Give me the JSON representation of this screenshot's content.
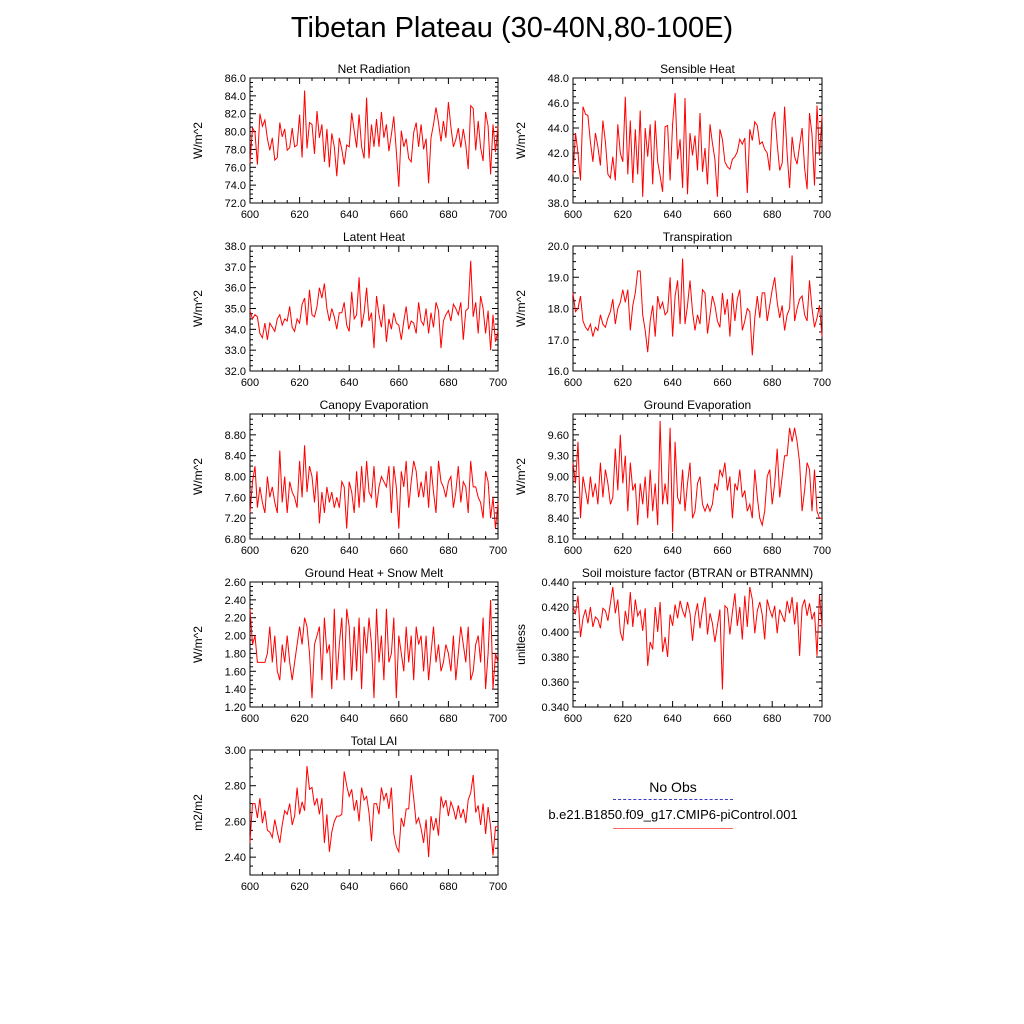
{
  "figure_title": "Tibetan Plateau (30-40N,80-100E)",
  "legend": {
    "obs_label": "No Obs",
    "run_label": "b.e21.B1850.f09_g17.CMIP6-piControl.001",
    "obs_color": "#3b3bc4",
    "run_color": "#ff6666"
  },
  "line_color": "#ff0000",
  "chart_data": [
    {
      "type": "line",
      "title": "Net Radiation",
      "ylabel": "W/m^2",
      "xlabel": "",
      "xlim": [
        600,
        700
      ],
      "xticks": [
        "600",
        "620",
        "640",
        "660",
        "680",
        "700"
      ],
      "ylim": [
        72,
        86
      ],
      "yticks": [
        "72.0",
        "74.0",
        "76.0",
        "78.0",
        "80.0",
        "82.0",
        "84.0",
        "86.0"
      ],
      "x_start": 600,
      "values": [
        76.5,
        80.4,
        79.9,
        76.3,
        82.0,
        80.6,
        81.3,
        79.2,
        77.9,
        79.3,
        76.8,
        77.1,
        81.0,
        79.4,
        80.3,
        77.9,
        78.2,
        80.4,
        78.3,
        78.5,
        81.9,
        77.1,
        84.6,
        78.1,
        81.0,
        80.8,
        77.5,
        82.3,
        79.3,
        80.8,
        76.6,
        80.3,
        76.0,
        79.8,
        78.3,
        75.0,
        79.3,
        78.0,
        76.3,
        78.5,
        78.3,
        82.1,
        80.1,
        78.2,
        81.9,
        78.3,
        77.0,
        83.8,
        77.0,
        80.8,
        78.3,
        81.4,
        78.3,
        82.2,
        79.3,
        80.8,
        77.8,
        79.7,
        81.7,
        77.8,
        73.8,
        80.1,
        78.3,
        79.2,
        77.0,
        76.6,
        79.9,
        81.0,
        78.3,
        80.8,
        78.0,
        79.2,
        74.2,
        79.3,
        80.8,
        82.7,
        81.0,
        78.9,
        81.2,
        79.3,
        83.3,
        80.5,
        78.3,
        79.1,
        80.4,
        78.2,
        80.3,
        78.5,
        75.8,
        82.9,
        82.6,
        77.9,
        81.2,
        78.2,
        76.7,
        82.2,
        80.6,
        75.2,
        80.8,
        77.7,
        80.6
      ]
    },
    {
      "type": "line",
      "title": "Sensible Heat",
      "ylabel": "W/m^2",
      "xlabel": "",
      "xlim": [
        600,
        700
      ],
      "xticks": [
        "600",
        "620",
        "640",
        "660",
        "680",
        "700"
      ],
      "ylim": [
        38,
        48
      ],
      "yticks": [
        "38.0",
        "40.0",
        "42.0",
        "44.0",
        "46.0",
        "48.0"
      ],
      "x_start": 600,
      "values": [
        40.3,
        43.6,
        42.0,
        39.8,
        45.7,
        45.1,
        45.0,
        42.9,
        41.3,
        43.6,
        42.5,
        41.0,
        44.6,
        42.9,
        40.3,
        40.0,
        41.7,
        39.8,
        44.3,
        42.0,
        41.3,
        46.5,
        40.3,
        44.6,
        39.6,
        43.9,
        40.3,
        45.4,
        38.5,
        44.0,
        41.7,
        44.3,
        39.5,
        44.6,
        41.3,
        40.2,
        38.9,
        44.1,
        44.2,
        39.8,
        44.3,
        46.8,
        41.5,
        43.1,
        39.2,
        46.4,
        38.7,
        43.6,
        41.8,
        43.4,
        40.6,
        45.2,
        40.5,
        42.4,
        39.5,
        44.3,
        42.8,
        41.5,
        38.5,
        43.9,
        43.1,
        41.3,
        40.9,
        40.7,
        41.5,
        41.7,
        42.1,
        43.1,
        42.7,
        43.2,
        38.8,
        43.9,
        43.0,
        44.5,
        44.2,
        42.7,
        42.9,
        42.3,
        42.0,
        40.6,
        44.6,
        45.3,
        42.7,
        40.6,
        41.2,
        45.7,
        42.0,
        39.2,
        43.3,
        41.7,
        41.1,
        42.6,
        44.0,
        40.8,
        39.1,
        45.2,
        43.5,
        39.4,
        45.8,
        41.8,
        45.0
      ]
    },
    {
      "type": "line",
      "title": "Latent Heat",
      "ylabel": "W/m^2",
      "xlabel": "",
      "xlim": [
        600,
        700
      ],
      "xticks": [
        "600",
        "620",
        "640",
        "660",
        "680",
        "700"
      ],
      "ylim": [
        32,
        38
      ],
      "yticks": [
        "32.0",
        "33.0",
        "34.0",
        "35.0",
        "36.0",
        "37.0",
        "38.0"
      ],
      "x_start": 600,
      "values": [
        34.9,
        34.5,
        34.7,
        34.6,
        33.8,
        33.6,
        34.3,
        33.5,
        34.3,
        34.1,
        33.9,
        34.5,
        34.7,
        34.2,
        34.5,
        34.4,
        35.1,
        34.1,
        33.9,
        34.5,
        34.3,
        35.2,
        35.5,
        34.2,
        35.9,
        34.7,
        34.6,
        35.1,
        36.0,
        35.5,
        36.2,
        35.0,
        34.4,
        35.0,
        34.6,
        34.0,
        34.8,
        34.8,
        35.3,
        34.2,
        33.9,
        35.8,
        34.5,
        34.7,
        36.5,
        34.1,
        34.8,
        36.0,
        34.4,
        34.8,
        33.1,
        35.6,
        34.7,
        34.1,
        35.2,
        33.4,
        34.5,
        34.0,
        34.8,
        34.3,
        34.2,
        33.5,
        34.4,
        35.1,
        34.0,
        34.4,
        34.3,
        33.8,
        35.3,
        34.4,
        34.2,
        35.0,
        33.8,
        34.8,
        34.1,
        35.3,
        34.9,
        33.1,
        34.4,
        34.7,
        34.9,
        34.4,
        35.2,
        35.0,
        34.7,
        35.3,
        33.5,
        34.9,
        35.0,
        37.3,
        34.6,
        35.3,
        33.8,
        35.6,
        35.0,
        33.8,
        34.9,
        33.0,
        34.7,
        33.4,
        33.9
      ]
    },
    {
      "type": "line",
      "title": "Transpiration",
      "ylabel": "W/m^2",
      "xlabel": "",
      "xlim": [
        600,
        700
      ],
      "xticks": [
        "600",
        "620",
        "640",
        "660",
        "680",
        "700"
      ],
      "ylim": [
        16,
        20
      ],
      "yticks": [
        "16.0",
        "17.0",
        "18.0",
        "19.0",
        "20.0"
      ],
      "x_start": 600,
      "values": [
        18.5,
        17.9,
        18.0,
        18.4,
        17.6,
        17.4,
        17.3,
        17.5,
        17.1,
        17.4,
        17.3,
        17.8,
        17.5,
        17.4,
        17.7,
        17.9,
        18.3,
        17.5,
        18.0,
        18.2,
        18.6,
        18.2,
        18.6,
        17.3,
        18.1,
        18.5,
        19.2,
        19.2,
        17.8,
        17.3,
        16.6,
        17.6,
        18.1,
        17.1,
        18.4,
        18.0,
        18.2,
        17.8,
        17.9,
        19.0,
        17.1,
        18.4,
        18.9,
        17.5,
        19.6,
        17.5,
        18.1,
        18.9,
        17.9,
        17.3,
        17.8,
        17.5,
        18.6,
        18.5,
        17.2,
        17.8,
        18.4,
        18.1,
        17.6,
        17.4,
        18.5,
        17.8,
        18.3,
        17.1,
        18.5,
        17.6,
        18.3,
        18.6,
        17.3,
        17.6,
        18.0,
        17.9,
        16.5,
        17.7,
        18.4,
        17.7,
        18.5,
        18.5,
        17.6,
        18.1,
        18.6,
        19.0,
        18.2,
        17.7,
        18.1,
        17.3,
        17.8,
        18.0,
        19.7,
        17.6,
        18.0,
        18.3,
        18.4,
        17.8,
        17.6,
        18.9,
        18.0,
        17.4,
        17.7,
        18.1,
        17.1
      ]
    },
    {
      "type": "line",
      "title": "Canopy Evaporation",
      "ylabel": "W/m^2",
      "xlabel": "",
      "xlim": [
        600,
        700
      ],
      "xticks": [
        "600",
        "620",
        "640",
        "660",
        "680",
        "700"
      ],
      "ylim": [
        6.8,
        9.2
      ],
      "yticks": [
        "6.80",
        "7.20",
        "7.60",
        "8.00",
        "8.40",
        "8.80"
      ],
      "x_start": 600,
      "values": [
        7.3,
        7.9,
        8.2,
        7.4,
        7.8,
        7.5,
        7.3,
        8.0,
        7.6,
        7.8,
        7.5,
        7.3,
        8.5,
        7.5,
        8.0,
        7.3,
        7.9,
        7.7,
        7.6,
        7.4,
        8.3,
        7.6,
        8.6,
        7.7,
        8.2,
        8.0,
        7.5,
        8.1,
        7.1,
        7.7,
        7.3,
        7.8,
        7.5,
        7.7,
        7.4,
        7.6,
        7.4,
        7.9,
        7.8,
        7.0,
        7.9,
        7.7,
        7.3,
        8.1,
        7.4,
        8.2,
        7.5,
        8.3,
        7.7,
        7.6,
        8.2,
        7.4,
        7.8,
        8.0,
        7.9,
        7.8,
        8.2,
        7.3,
        8.2,
        7.8,
        7.0,
        8.1,
        7.8,
        8.3,
        7.4,
        7.9,
        8.3,
        8.1,
        7.6,
        7.9,
        7.6,
        8.1,
        7.4,
        8.2,
        7.7,
        7.3,
        8.3,
        7.9,
        7.8,
        7.6,
        7.9,
        8.0,
        7.4,
        7.7,
        8.2,
        7.5,
        7.9,
        7.8,
        7.3,
        8.3,
        7.8,
        7.8,
        7.6,
        7.5,
        7.2,
        8.1,
        7.9,
        7.2,
        7.6,
        7.0,
        7.5
      ]
    },
    {
      "type": "line",
      "title": "Ground Evaporation",
      "ylabel": "W/m^2",
      "xlabel": "",
      "xlim": [
        600,
        700
      ],
      "xticks": [
        "600",
        "620",
        "640",
        "660",
        "680",
        "700"
      ],
      "ylim": [
        8.1,
        9.9
      ],
      "yticks": [
        "8.10",
        "8.40",
        "8.70",
        "9.00",
        "9.30",
        "9.60"
      ],
      "x_start": 600,
      "values": [
        9.2,
        8.9,
        9.5,
        8.4,
        9.0,
        8.8,
        8.6,
        9.0,
        8.7,
        8.9,
        8.6,
        9.2,
        8.7,
        9.1,
        8.9,
        8.6,
        8.7,
        9.4,
        8.8,
        9.6,
        8.9,
        9.3,
        8.5,
        9.2,
        8.8,
        8.9,
        8.3,
        8.9,
        8.6,
        9.0,
        8.4,
        9.1,
        8.5,
        8.9,
        8.3,
        9.8,
        8.6,
        8.9,
        8.6,
        9.7,
        8.2,
        9.5,
        8.7,
        8.6,
        9.1,
        8.5,
        8.9,
        9.2,
        8.4,
        8.5,
        8.9,
        9.0,
        8.6,
        8.5,
        8.6,
        8.5,
        8.6,
        8.9,
        8.8,
        9.1,
        9.0,
        9.2,
        8.8,
        9.0,
        8.4,
        8.9,
        8.8,
        9.1,
        8.7,
        8.8,
        8.5,
        8.6,
        8.4,
        9.1,
        8.7,
        8.4,
        8.3,
        8.5,
        9.0,
        9.1,
        8.6,
        8.9,
        9.4,
        8.7,
        9.0,
        9.3,
        9.3,
        9.7,
        9.5,
        9.7,
        9.5,
        9.2,
        8.5,
        8.8,
        9.2,
        9.1,
        8.5,
        9.1,
        8.5,
        8.4,
        8.4
      ]
    },
    {
      "type": "line",
      "title": "Ground Heat + Snow Melt",
      "ylabel": "W/m^2",
      "xlabel": "",
      "xlim": [
        600,
        700
      ],
      "xticks": [
        "600",
        "620",
        "640",
        "660",
        "680",
        "700"
      ],
      "ylim": [
        1.2,
        2.6
      ],
      "yticks": [
        "1.20",
        "1.40",
        "1.60",
        "1.80",
        "2.00",
        "2.20",
        "2.40",
        "2.60"
      ],
      "x_start": 600,
      "values": [
        2.3,
        1.9,
        2.0,
        1.7,
        1.7,
        1.7,
        1.7,
        1.8,
        2.1,
        1.7,
        2.0,
        1.6,
        1.5,
        1.9,
        1.7,
        2.0,
        1.7,
        1.5,
        1.7,
        1.9,
        2.1,
        1.9,
        2.2,
        2.1,
        1.8,
        1.3,
        1.9,
        2.0,
        2.1,
        1.5,
        2.2,
        1.8,
        1.9,
        1.4,
        2.3,
        1.5,
        1.9,
        2.2,
        1.5,
        2.3,
        2.1,
        1.5,
        2.1,
        1.6,
        2.2,
        1.4,
        2.1,
        1.8,
        2.2,
        1.9,
        1.3,
        2.3,
        1.7,
        2.0,
        1.5,
        2.3,
        1.7,
        1.8,
        2.2,
        1.3,
        2.0,
        1.8,
        1.6,
        2.1,
        1.7,
        2.0,
        1.5,
        2.1,
        1.9,
        2.0,
        1.6,
        2.0,
        1.5,
        1.8,
        2.1,
        1.7,
        1.9,
        1.6,
        1.7,
        1.9,
        1.8,
        1.6,
        2.0,
        1.5,
        1.8,
        2.1,
        1.9,
        1.7,
        2.1,
        1.5,
        1.6,
        1.9,
        2.0,
        1.7,
        2.2,
        1.4,
        1.8,
        2.4,
        1.4,
        1.8,
        1.7
      ]
    },
    {
      "type": "line",
      "title": "Soil moisture factor (BTRAN or BTRANMN)",
      "ylabel": "unitless",
      "xlabel": "",
      "xlim": [
        600,
        700
      ],
      "xticks": [
        "600",
        "620",
        "640",
        "660",
        "680",
        "700"
      ],
      "ylim": [
        0.34,
        0.44
      ],
      "yticks": [
        "0.340",
        "0.360",
        "0.380",
        "0.400",
        "0.420",
        "0.440"
      ],
      "x_start": 600,
      "values": [
        0.42,
        0.415,
        0.429,
        0.396,
        0.411,
        0.418,
        0.407,
        0.42,
        0.404,
        0.412,
        0.41,
        0.403,
        0.419,
        0.417,
        0.409,
        0.423,
        0.436,
        0.415,
        0.426,
        0.4,
        0.393,
        0.417,
        0.406,
        0.432,
        0.404,
        0.426,
        0.413,
        0.417,
        0.401,
        0.419,
        0.373,
        0.392,
        0.386,
        0.42,
        0.4,
        0.424,
        0.384,
        0.396,
        0.38,
        0.414,
        0.405,
        0.422,
        0.411,
        0.425,
        0.417,
        0.412,
        0.424,
        0.415,
        0.393,
        0.413,
        0.423,
        0.403,
        0.418,
        0.428,
        0.398,
        0.415,
        0.407,
        0.392,
        0.405,
        0.418,
        0.354,
        0.421,
        0.419,
        0.398,
        0.416,
        0.431,
        0.405,
        0.42,
        0.394,
        0.429,
        0.404,
        0.436,
        0.426,
        0.399,
        0.417,
        0.424,
        0.414,
        0.394,
        0.426,
        0.418,
        0.412,
        0.421,
        0.399,
        0.418,
        0.413,
        0.408,
        0.425,
        0.415,
        0.428,
        0.406,
        0.424,
        0.381,
        0.42,
        0.426,
        0.413,
        0.423,
        0.41,
        0.416,
        0.381,
        0.43,
        0.404
      ]
    },
    {
      "type": "line",
      "title": "Total LAI",
      "ylabel": "m2/m2",
      "xlabel": "",
      "xlim": [
        600,
        700
      ],
      "xticks": [
        "600",
        "620",
        "640",
        "660",
        "680",
        "700"
      ],
      "ylim": [
        2.3,
        3.0
      ],
      "yticks": [
        "2.40",
        "2.60",
        "2.80",
        "3.00"
      ],
      "x_start": 600,
      "values": [
        2.48,
        2.7,
        2.7,
        2.62,
        2.73,
        2.59,
        2.66,
        2.55,
        2.54,
        2.51,
        2.61,
        2.54,
        2.48,
        2.58,
        2.66,
        2.64,
        2.7,
        2.58,
        2.63,
        2.79,
        2.64,
        2.71,
        2.66,
        2.91,
        2.78,
        2.79,
        2.69,
        2.73,
        2.64,
        2.73,
        2.48,
        2.64,
        2.43,
        2.54,
        2.6,
        2.63,
        2.63,
        2.64,
        2.88,
        2.8,
        2.74,
        2.78,
        2.66,
        2.72,
        2.6,
        2.79,
        2.72,
        2.74,
        2.65,
        2.49,
        2.7,
        2.7,
        2.64,
        2.79,
        2.72,
        2.76,
        2.67,
        2.79,
        2.53,
        2.46,
        2.43,
        2.62,
        2.57,
        2.67,
        2.67,
        2.86,
        2.73,
        2.59,
        2.62,
        2.56,
        2.48,
        2.61,
        2.4,
        2.63,
        2.55,
        2.62,
        2.52,
        2.74,
        2.68,
        2.72,
        2.63,
        2.71,
        2.67,
        2.61,
        2.69,
        2.62,
        2.67,
        2.59,
        2.72,
        2.76,
        2.86,
        2.65,
        2.69,
        2.58,
        2.7,
        2.53,
        2.68,
        2.57,
        2.41,
        2.57,
        2.57
      ]
    }
  ]
}
